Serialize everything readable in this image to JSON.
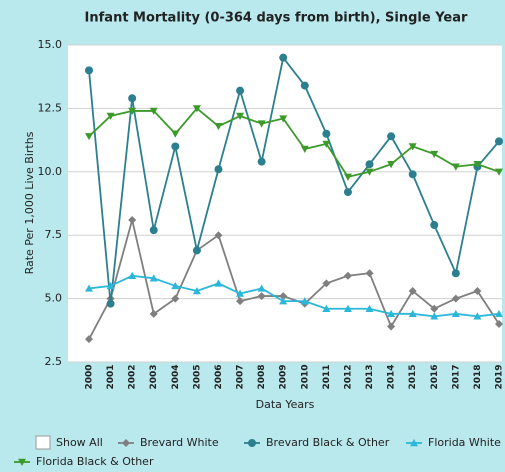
{
  "chart_data": {
    "type": "line",
    "title": "Infant Mortality (0-364 days from birth), Single Year",
    "y_label": "Rate Per 1,000 Live Births",
    "x_label": "Data Years",
    "show_all_label": "Show All",
    "categories": [
      "2000",
      "2001",
      "2002",
      "2003",
      "2004",
      "2005",
      "2006",
      "2007",
      "2008",
      "2009",
      "2010",
      "2011",
      "2012",
      "2013",
      "2014",
      "2015",
      "2016",
      "2017",
      "2018",
      "2019"
    ],
    "ylim": [
      2.5,
      15
    ],
    "yticks": [
      2.5,
      {
        "value": 5,
        "label": "5.0"
      },
      7.5,
      {
        "value": 10,
        "label": "10.0"
      },
      12.5,
      {
        "value": 15,
        "label": "15.0"
      }
    ],
    "grid": true,
    "legend": "bottom",
    "series": [
      {
        "name": "Brevard White",
        "color": "#7f7f7f",
        "marker": "diamond",
        "values": [
          3.4,
          5.0,
          8.1,
          4.4,
          5.0,
          6.9,
          7.5,
          4.9,
          5.1,
          5.1,
          4.8,
          5.6,
          5.9,
          6.0,
          3.9,
          5.3,
          4.6,
          5.0,
          5.3,
          4.0
        ]
      },
      {
        "name": "Brevard Black & Other",
        "color": "#2b7f8e",
        "marker": "circle",
        "values": [
          14.0,
          4.8,
          12.9,
          7.7,
          11.0,
          6.9,
          10.1,
          13.2,
          10.4,
          14.5,
          13.4,
          11.5,
          9.2,
          10.3,
          11.4,
          9.9,
          7.9,
          6.0,
          10.2,
          11.2
        ]
      },
      {
        "name": "Florida White",
        "color": "#2ab7d9",
        "marker": "triangle-up",
        "values": [
          5.4,
          5.5,
          5.9,
          5.8,
          5.5,
          5.3,
          5.6,
          5.2,
          5.4,
          4.9,
          4.9,
          4.6,
          4.6,
          4.6,
          4.4,
          4.4,
          4.3,
          4.4,
          4.3,
          4.4
        ]
      },
      {
        "name": "Florida Black & Other",
        "color": "#3c9a2b",
        "marker": "triangle-down",
        "values": [
          11.4,
          12.2,
          12.4,
          12.4,
          11.5,
          12.5,
          11.8,
          12.2,
          11.9,
          12.1,
          10.9,
          11.1,
          9.8,
          10.0,
          10.3,
          11.0,
          10.7,
          10.2,
          10.3,
          10.0
        ]
      }
    ]
  }
}
